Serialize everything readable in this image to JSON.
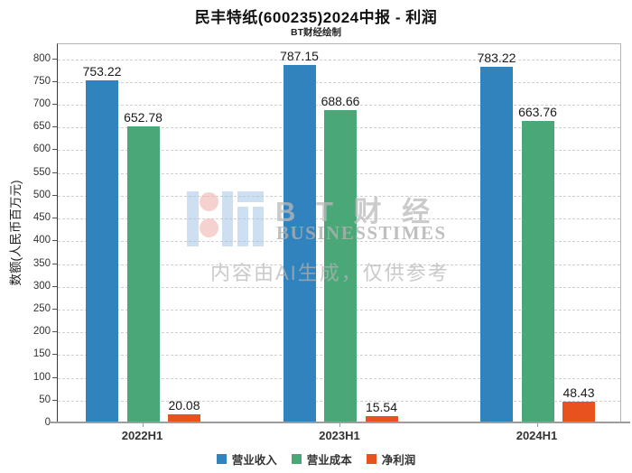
{
  "title": "民丰特纸(600235)2024中报 - 利润",
  "subtitle": "BT财经绘制",
  "watermark": {
    "logo_text_cn": "B T 财 经",
    "logo_text_en": "BUSINESSTIMES",
    "disclaimer": "内容由AI生成，仅供参考"
  },
  "chart_data": {
    "type": "bar",
    "categories": [
      "2022H1",
      "2023H1",
      "2024H1"
    ],
    "series": [
      {
        "name": "营业收入",
        "color": "#3183bd",
        "values": [
          753.22,
          787.15,
          783.22
        ]
      },
      {
        "name": "营业成本",
        "color": "#4aa878",
        "values": [
          652.78,
          688.66,
          663.76
        ]
      },
      {
        "name": "净利润",
        "color": "#e8521f",
        "values": [
          20.08,
          15.54,
          48.43
        ]
      }
    ],
    "ylabel": "数额(人民币百万元)",
    "ylim": [
      0,
      833
    ],
    "ytick_step": 50,
    "ytick_max": 800,
    "grid": true,
    "grid_style": "dashed",
    "legend_position": "bottom",
    "value_labels_decimals": 2
  }
}
